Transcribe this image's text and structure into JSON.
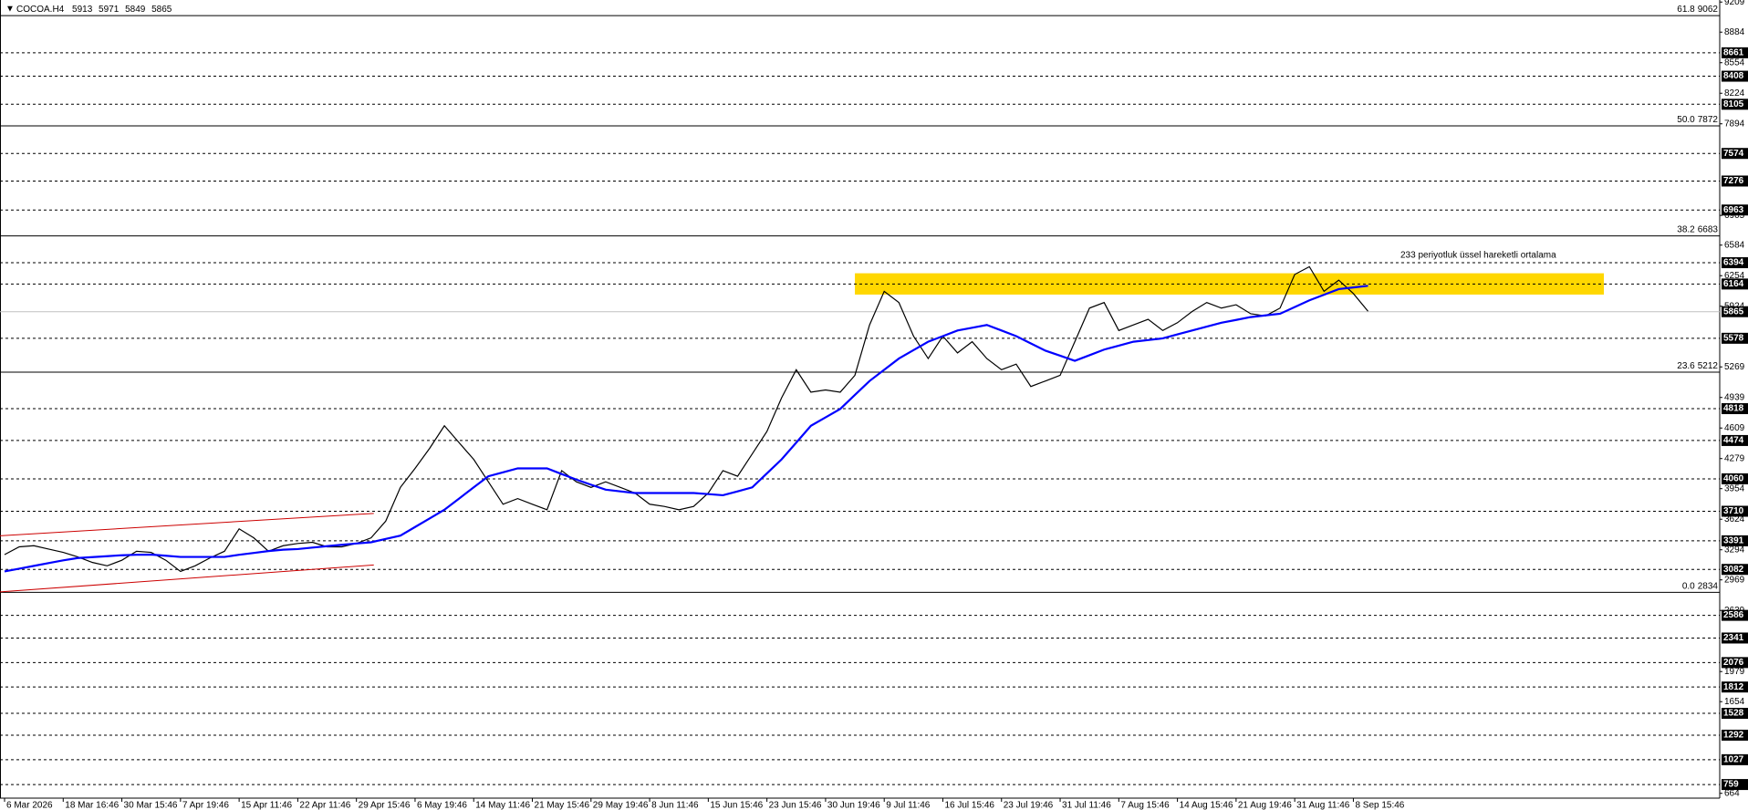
{
  "chart_data": {
    "type": "line",
    "title": "COCOA.H4",
    "ohlc": [
      5913,
      5971,
      5849,
      5865
    ],
    "categories": [
      "6 Mar 2026",
      null,
      null,
      null,
      "18 Mar 16:46",
      null,
      null,
      null,
      "30 Mar 15:46",
      null,
      null,
      null,
      "7 Apr 19:46",
      null,
      null,
      null,
      "15 Apr 11:46",
      null,
      null,
      null,
      "22 Apr 11:46",
      null,
      null,
      null,
      "29 Apr 15:46",
      null,
      null,
      null,
      "6 May 19:46",
      null,
      null,
      null,
      "14 May 11:46",
      null,
      null,
      null,
      "21 May 15:46",
      null,
      null,
      null,
      "29 May 19:46",
      null,
      null,
      null,
      "8 Jun 11:46",
      null,
      null,
      null,
      "15 Jun 15:46",
      null,
      null,
      null,
      "23 Jun 15:46",
      null,
      null,
      null,
      "30 Jun 19:46",
      null,
      null,
      null,
      "9 Jul 11:46",
      null,
      null,
      null,
      "16 Jul 15:46",
      null,
      null,
      null,
      "23 Jul 19:46",
      null,
      null,
      null,
      "31 Jul 11:46",
      null,
      null,
      null,
      "7 Aug 15:46",
      null,
      null,
      null,
      "14 Aug 15:46",
      null,
      null,
      null,
      "21 Aug 19:46",
      null,
      null,
      null,
      "31 Aug 11:46",
      null,
      null,
      null,
      "8 Sep 15:46",
      null
    ],
    "series": [
      {
        "color": "#000000",
        "values": [
          3242,
          3326,
          3338,
          3302,
          3266,
          3217,
          3157,
          3121,
          3181,
          3278,
          3266,
          3181,
          3060,
          3121,
          3205,
          3278,
          3520,
          3423,
          3278,
          3338,
          3362,
          3375,
          3326,
          3326,
          3362,
          3423,
          3604,
          3968,
          4173,
          4391,
          4633,
          4451,
          4270,
          4028,
          3786,
          3847,
          3786,
          3726,
          4149,
          4028,
          3968,
          4028,
          3968,
          3907,
          3786,
          3762,
          3726,
          3762,
          3907,
          4149,
          4088,
          4330,
          4572,
          4935,
          5238,
          4996,
          5020,
          4996,
          5178,
          5722,
          6085,
          5964,
          5601,
          5359,
          5601,
          5420,
          5541,
          5359,
          5238,
          5299,
          5057,
          5117,
          5178,
          5541,
          5904,
          5964,
          5662,
          5722,
          5783,
          5662,
          5746,
          5867,
          5964,
          5904,
          5940,
          5843,
          5819,
          5904,
          6267,
          6351,
          6085,
          6206,
          6061,
          5870
        ]
      },
      {
        "name": "233 periyotluk üssel hareketli ortalama",
        "color": "#0000ff",
        "values": [
          3060,
          3090,
          3120,
          3150,
          3180,
          3205,
          3215,
          3225,
          3235,
          3240,
          3242,
          3230,
          3217,
          3217,
          3217,
          3217,
          3240,
          3260,
          3280,
          3295,
          3302,
          3318,
          3333,
          3348,
          3362,
          3375,
          3411,
          3447,
          3540,
          3633,
          3726,
          3847,
          3968,
          4088,
          4130,
          4173,
          4173,
          4173,
          4112,
          4052,
          3997,
          3943,
          3925,
          3907,
          3907,
          3907,
          3907,
          3907,
          3895,
          3883,
          3925,
          3968,
          4119,
          4270,
          4451,
          4633,
          4724,
          4815,
          4966,
          5117,
          5238,
          5359,
          5450,
          5541,
          5601,
          5662,
          5692,
          5722,
          5662,
          5601,
          5522,
          5444,
          5390,
          5335,
          5395,
          5456,
          5498,
          5541,
          5559,
          5577,
          5620,
          5662,
          5704,
          5746,
          5776,
          5807,
          5825,
          5843,
          5915,
          5988,
          6048,
          6109,
          6127,
          6145
        ]
      }
    ],
    "ylim": [
      612,
      9231
    ],
    "yticks": [
      9209,
      8884,
      8554,
      8224,
      7894,
      6905,
      6584,
      6254,
      5924,
      5269,
      4939,
      4609,
      4279,
      3954,
      3624,
      3294,
      2969,
      2639,
      1979,
      1654,
      664
    ],
    "levels": [
      8661,
      8408,
      8105,
      7574,
      7276,
      6963,
      6394,
      6164,
      5578,
      4818,
      4474,
      4060,
      3710,
      3391,
      3082,
      2586,
      2341,
      2076,
      1812,
      1528,
      1292,
      1027,
      759
    ],
    "fib": [
      {
        "label": "61.8",
        "value": 9062
      },
      {
        "label": "50.0",
        "value": 7872
      },
      {
        "label": "38.2",
        "value": 6683
      },
      {
        "label": "23.6",
        "value": 5212
      },
      {
        "label": "0.0",
        "value": 2834
      }
    ],
    "zone": {
      "ylim": [
        6050,
        6280
      ],
      "color": "#ffd700"
    },
    "channel": {
      "color": "#cc0000",
      "upper": [
        3445,
        3687
      ],
      "lower": [
        2839,
        3130
      ]
    },
    "grid": false
  }
}
